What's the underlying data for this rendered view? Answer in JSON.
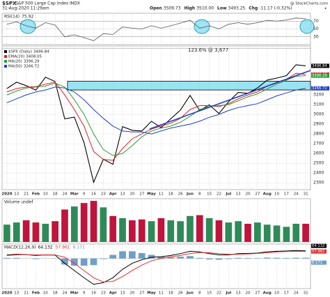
{
  "header": {
    "symbol": "$SPX",
    "name": "S&P 500 Large Cap Index",
    "exchange": "INDX",
    "date": "31-Aug-2020 11:29am",
    "credit": "@ StockCharts.com",
    "quote": [
      {
        "label": "Open",
        "value": "3509.73"
      },
      {
        "label": "High",
        "value": "3510.00"
      },
      {
        "label": "Low",
        "value": "3493.25"
      },
      {
        "label": "Chg",
        "value": "-11.17 (-0.32%)"
      }
    ]
  },
  "chart_data": [
    {
      "type": "line",
      "ylim": [
        10,
        90
      ],
      "yticks": [
        30,
        50,
        70
      ],
      "series": [
        {
          "name": "RSI(14)",
          "last": 75.92,
          "color": "#555555",
          "values": [
            62,
            68,
            58,
            52,
            66,
            60,
            30,
            35,
            28,
            20,
            38,
            36,
            55,
            52,
            50,
            58,
            52,
            58,
            65,
            72,
            52,
            58,
            50,
            62,
            66,
            62,
            66,
            72,
            70,
            73,
            78,
            76
          ]
        }
      ]
    },
    {
      "type": "line",
      "ylim": [
        2230,
        3700
      ],
      "yticks": [
        2300,
        2400,
        2500,
        2600,
        2700,
        2800,
        2900,
        3000,
        3100,
        3200
      ],
      "grid": true,
      "categories": [
        "2020",
        "13",
        "21",
        "Feb",
        "10",
        "18",
        "24",
        "Mar",
        "9",
        "16",
        "23",
        "Apr",
        "13",
        "20",
        "27",
        "May",
        "11",
        "18",
        "26",
        "Jun",
        "8",
        "15",
        "22",
        "Jul",
        "13",
        "20",
        "27",
        "Aug",
        "10",
        "17",
        "24",
        "31"
      ],
      "annotations": [
        {
          "text": "123.6% @ 3,677",
          "value": 3677
        }
      ],
      "band": [
        3250,
        3340
      ],
      "series": [
        {
          "name": "$SPX (Daily)",
          "last": 3496.84,
          "color": "#000000",
          "values": [
            3265,
            3330,
            3295,
            3248,
            3380,
            3337,
            2954,
            2972,
            2711,
            2305,
            2541,
            2489,
            2875,
            2837,
            2830,
            2930,
            2864,
            2955,
            3044,
            3194,
            3041,
            3098,
            3009,
            3130,
            3225,
            3216,
            3271,
            3351,
            3372,
            3397,
            3508,
            3497
          ]
        },
        {
          "name": "EMA(20)",
          "last": 3408.05,
          "color": "#e02020",
          "values": [
            3230,
            3265,
            3280,
            3285,
            3310,
            3330,
            3200,
            3050,
            2880,
            2620,
            2540,
            2530,
            2650,
            2750,
            2800,
            2850,
            2880,
            2910,
            2960,
            3050,
            3090,
            3090,
            3080,
            3110,
            3160,
            3200,
            3230,
            3290,
            3330,
            3360,
            3420,
            3408
          ]
        },
        {
          "name": "MA(20)",
          "last": 3396.29,
          "color": "#2e9a3a",
          "values": [
            3200,
            3240,
            3270,
            3280,
            3290,
            3320,
            3280,
            3150,
            3000,
            2800,
            2640,
            2580,
            2600,
            2680,
            2770,
            2830,
            2860,
            2880,
            2920,
            2980,
            3050,
            3080,
            3090,
            3100,
            3140,
            3180,
            3210,
            3260,
            3310,
            3350,
            3390,
            3396
          ]
        },
        {
          "name": "MA(50)",
          "last": 3266.72,
          "color": "#2040c0",
          "values": [
            3120,
            3160,
            3200,
            3230,
            3250,
            3280,
            3270,
            3230,
            3150,
            3050,
            2960,
            2880,
            2830,
            2820,
            2820,
            2800,
            2830,
            2860,
            2880,
            2900,
            2930,
            2970,
            3000,
            3040,
            3070,
            3090,
            3110,
            3150,
            3190,
            3220,
            3250,
            3267
          ]
        }
      ]
    },
    {
      "type": "bar",
      "title": "Volume undef",
      "ylim": [
        0,
        100
      ],
      "up_color": "#2e8b57",
      "down_color": "#c0143c",
      "values": [
        40,
        45,
        50,
        45,
        42,
        48,
        75,
        82,
        90,
        95,
        80,
        60,
        55,
        50,
        52,
        48,
        55,
        50,
        48,
        60,
        62,
        55,
        50,
        45,
        48,
        42,
        45,
        40,
        38,
        35,
        42,
        42
      ]
    },
    {
      "type": "macd",
      "title": "MACD(12,26,9)",
      "ylim": [
        -250,
        120
      ],
      "series": [
        {
          "color": "#000000",
          "last": 64.132,
          "values": [
            30,
            35,
            32,
            25,
            30,
            28,
            -40,
            -100,
            -160,
            -215,
            -200,
            -160,
            -90,
            -40,
            -10,
            10,
            15,
            25,
            40,
            60,
            55,
            40,
            30,
            30,
            40,
            42,
            45,
            55,
            60,
            62,
            66,
            64
          ]
        },
        {
          "color": "#e03030",
          "last": 57.961,
          "values": [
            25,
            30,
            32,
            30,
            30,
            30,
            10,
            -40,
            -100,
            -160,
            -195,
            -190,
            -150,
            -100,
            -55,
            -20,
            0,
            15,
            25,
            40,
            50,
            48,
            40,
            35,
            35,
            38,
            42,
            48,
            54,
            58,
            60,
            58
          ]
        },
        {
          "color": "#6f9fc8",
          "last": 6.171,
          "values": [
            5,
            5,
            0,
            -5,
            0,
            -2,
            -50,
            -60,
            -60,
            -55,
            -5,
            30,
            60,
            60,
            45,
            30,
            15,
            10,
            15,
            20,
            5,
            -8,
            -10,
            -5,
            5,
            4,
            3,
            7,
            6,
            4,
            6,
            6
          ]
        }
      ]
    }
  ]
}
